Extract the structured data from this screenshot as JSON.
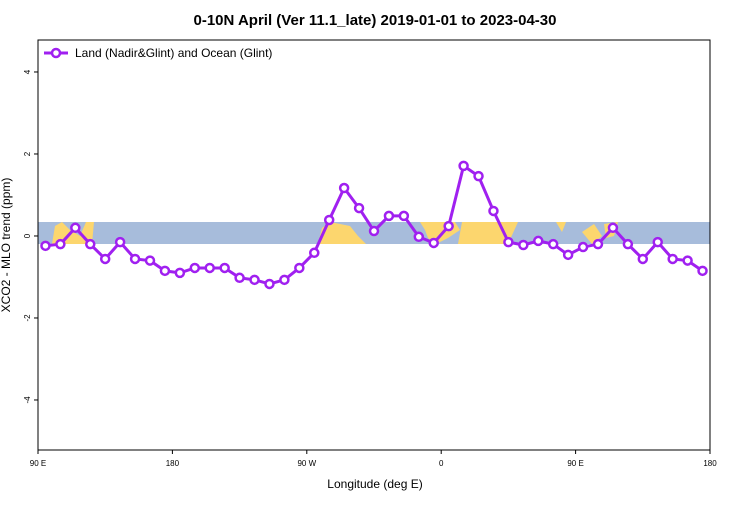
{
  "chart_data": {
    "type": "line",
    "title": "0-10N April (Ver 11.1_late)   2019-01-01 to 2023-04-30",
    "x_label": "Longitude (deg E)",
    "y_label": "XCO2 - MLO trend (ppm)",
    "x": [
      95,
      105,
      115,
      125,
      135,
      145,
      155,
      165,
      175,
      185,
      195,
      205,
      215,
      225,
      235,
      245,
      255,
      265,
      275,
      285,
      295,
      305,
      315,
      325,
      335,
      345,
      355,
      365,
      375,
      385,
      395,
      405,
      415,
      425,
      435,
      445,
      455,
      465,
      475,
      485,
      495,
      505,
      515,
      525,
      535
    ],
    "series": [
      {
        "name": "Land (Nadir&Glint) and Ocean (Glint)",
        "color": "#a020f0",
        "values": [
          -0.24,
          -0.2,
          0.2,
          -0.2,
          -0.56,
          -0.15,
          -0.56,
          -0.6,
          -0.85,
          -0.9,
          -0.78,
          -0.78,
          -0.78,
          -1.02,
          -1.07,
          -1.17,
          -1.07,
          -0.78,
          -0.41,
          0.39,
          1.17,
          0.68,
          0.12,
          0.49,
          0.49,
          -0.02,
          -0.17,
          0.24,
          1.71,
          1.46,
          0.61,
          -0.15,
          -0.22,
          -0.12,
          -0.2,
          -0.46,
          -0.27,
          -0.2,
          0.2,
          -0.2,
          -0.56,
          -0.15,
          -0.56,
          -0.6,
          -0.85
        ]
      }
    ],
    "xlim": [
      90,
      540
    ],
    "xticks": [
      {
        "value": 90,
        "label": "90 E"
      },
      180,
      {
        "value": 270,
        "label": "90 W"
      },
      {
        "value": 360,
        "label": "0"
      },
      {
        "value": 450,
        "label": "90 E"
      },
      {
        "value": 540,
        "label": "180"
      }
    ],
    "ylim": [
      -5.22,
      4.78
    ],
    "yticks": [
      -4,
      -2,
      0,
      2,
      4
    ],
    "legend": "top-left"
  }
}
